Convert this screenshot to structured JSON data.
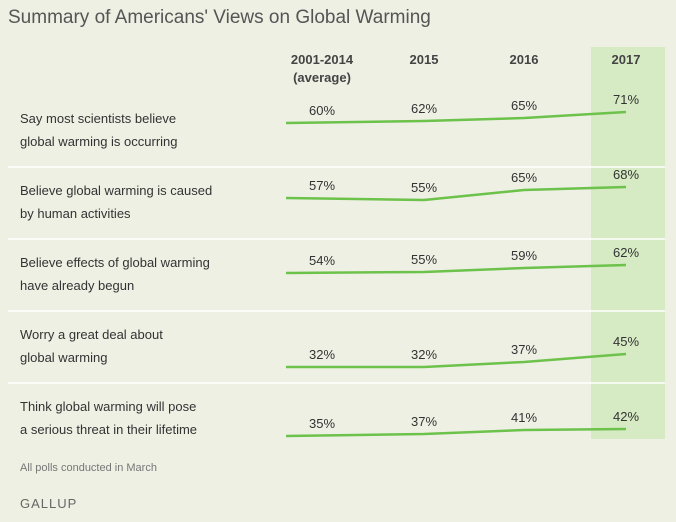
{
  "chart_data": {
    "type": "table",
    "title": "Summary of Americans' Views on Global Warming",
    "columns": [
      {
        "label": "2001-2014",
        "sublabel": "(average)"
      },
      {
        "label": "2015",
        "sublabel": ""
      },
      {
        "label": "2016",
        "sublabel": ""
      },
      {
        "label": "2017",
        "sublabel": ""
      }
    ],
    "highlight_column": "2017",
    "highlight_color": "#d6eac4",
    "line_color": "#6cc24a",
    "rows": [
      {
        "label": [
          "Say most scientists believe",
          "global warming is occurring"
        ],
        "values": [
          60,
          62,
          65,
          71
        ]
      },
      {
        "label": [
          "Believe global warming is caused",
          "by human activities"
        ],
        "values": [
          57,
          55,
          65,
          68
        ]
      },
      {
        "label": [
          "Believe effects of global warming",
          "have already begun"
        ],
        "values": [
          54,
          55,
          59,
          62
        ]
      },
      {
        "label": [
          "Worry a great deal about",
          "global warming"
        ],
        "values": [
          32,
          32,
          37,
          45
        ]
      },
      {
        "label": [
          "Think global warming will pose",
          "a serious threat in their lifetime"
        ],
        "values": [
          35,
          37,
          41,
          42
        ]
      }
    ],
    "value_suffix": "%",
    "note": "All polls conducted in March",
    "source": "GALLUP"
  }
}
